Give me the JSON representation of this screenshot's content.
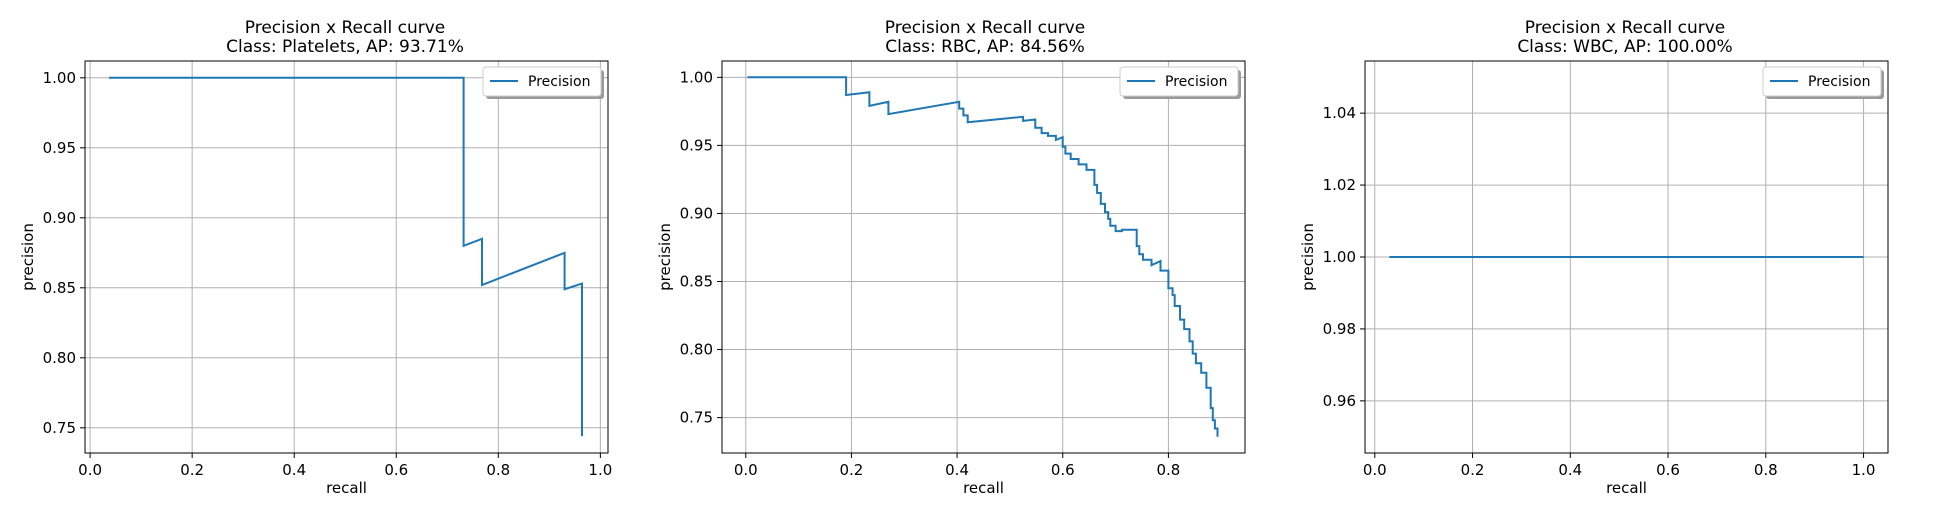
{
  "chart_data": [
    {
      "type": "line",
      "title": "Precision x Recall curve",
      "subtitle": "Class: Platelets, AP: 93.71%",
      "xlabel": "recall",
      "ylabel": "precision",
      "xlim": [
        -0.01,
        1.015
      ],
      "ylim": [
        0.732,
        1.012
      ],
      "xticks": [
        0.0,
        0.2,
        0.4,
        0.6,
        0.8,
        1.0
      ],
      "xtick_labels": [
        "0.0",
        "0.2",
        "0.4",
        "0.6",
        "0.8",
        "1.0"
      ],
      "yticks": [
        0.75,
        0.8,
        0.85,
        0.9,
        0.95,
        1.0
      ],
      "ytick_labels": [
        "0.75",
        "0.80",
        "0.85",
        "0.90",
        "0.95",
        "1.00"
      ],
      "grid": true,
      "legend": "upper right",
      "series": [
        {
          "name": "Precision",
          "color": "#1f77b4",
          "x": [
            0.037,
            0.732,
            0.732,
            0.768,
            0.768,
            0.93,
            0.93,
            0.964,
            0.964
          ],
          "y": [
            1.0,
            1.0,
            0.88,
            0.885,
            0.852,
            0.875,
            0.849,
            0.853,
            0.744
          ]
        }
      ]
    },
    {
      "type": "line",
      "title": "Precision x Recall curve",
      "subtitle": "Class: RBC, AP: 84.56%",
      "xlabel": "recall",
      "ylabel": "precision",
      "xlim": [
        -0.045,
        0.945
      ],
      "ylim": [
        0.724,
        1.012
      ],
      "xticks": [
        0.0,
        0.2,
        0.4,
        0.6,
        0.8
      ],
      "xtick_labels": [
        "0.0",
        "0.2",
        "0.4",
        "0.6",
        "0.8"
      ],
      "yticks": [
        0.75,
        0.8,
        0.85,
        0.9,
        0.95,
        1.0
      ],
      "ytick_labels": [
        "0.75",
        "0.80",
        "0.85",
        "0.90",
        "0.95",
        "1.00"
      ],
      "grid": true,
      "legend": "upper right",
      "series": [
        {
          "name": "Precision",
          "color": "#1f77b4",
          "x": [
            0.003,
            0.19,
            0.19,
            0.234,
            0.234,
            0.27,
            0.27,
            0.404,
            0.404,
            0.412,
            0.412,
            0.42,
            0.42,
            0.525,
            0.525,
            0.548,
            0.548,
            0.56,
            0.56,
            0.572,
            0.572,
            0.587,
            0.587,
            0.6,
            0.6,
            0.605,
            0.605,
            0.615,
            0.615,
            0.63,
            0.63,
            0.645,
            0.645,
            0.66,
            0.66,
            0.665,
            0.665,
            0.672,
            0.672,
            0.68,
            0.68,
            0.686,
            0.686,
            0.69,
            0.69,
            0.7,
            0.7,
            0.712,
            0.712,
            0.74,
            0.74,
            0.745,
            0.745,
            0.752,
            0.752,
            0.768,
            0.768,
            0.785,
            0.785,
            0.8,
            0.8,
            0.808,
            0.808,
            0.812,
            0.812,
            0.822,
            0.822,
            0.83,
            0.83,
            0.84,
            0.84,
            0.846,
            0.846,
            0.852,
            0.852,
            0.862,
            0.862,
            0.872,
            0.872,
            0.88,
            0.88,
            0.884,
            0.884,
            0.888,
            0.888,
            0.893,
            0.893
          ],
          "y": [
            1.0,
            1.0,
            0.987,
            0.989,
            0.979,
            0.982,
            0.973,
            0.982,
            0.977,
            0.977,
            0.972,
            0.972,
            0.967,
            0.971,
            0.968,
            0.969,
            0.963,
            0.963,
            0.959,
            0.959,
            0.957,
            0.957,
            0.954,
            0.956,
            0.949,
            0.949,
            0.944,
            0.944,
            0.94,
            0.94,
            0.936,
            0.936,
            0.932,
            0.932,
            0.921,
            0.921,
            0.915,
            0.915,
            0.907,
            0.907,
            0.901,
            0.901,
            0.896,
            0.896,
            0.891,
            0.891,
            0.887,
            0.887,
            0.888,
            0.888,
            0.876,
            0.876,
            0.87,
            0.87,
            0.866,
            0.866,
            0.862,
            0.865,
            0.858,
            0.858,
            0.845,
            0.845,
            0.84,
            0.84,
            0.832,
            0.832,
            0.822,
            0.822,
            0.815,
            0.815,
            0.806,
            0.806,
            0.797,
            0.797,
            0.79,
            0.79,
            0.783,
            0.783,
            0.772,
            0.772,
            0.757,
            0.757,
            0.748,
            0.748,
            0.742,
            0.742,
            0.736
          ]
        }
      ]
    },
    {
      "type": "line",
      "title": "Precision x Recall curve",
      "subtitle": "Class: WBC, AP: 100.00%",
      "xlabel": "recall",
      "ylabel": "precision",
      "xlim": [
        -0.02,
        1.05
      ],
      "ylim": [
        0.9455,
        1.0545
      ],
      "xticks": [
        0.0,
        0.2,
        0.4,
        0.6,
        0.8,
        1.0
      ],
      "xtick_labels": [
        "0.0",
        "0.2",
        "0.4",
        "0.6",
        "0.8",
        "1.0"
      ],
      "yticks": [
        0.96,
        0.98,
        1.0,
        1.02,
        1.04
      ],
      "ytick_labels": [
        "0.96",
        "0.98",
        "1.00",
        "1.02",
        "1.04"
      ],
      "grid": true,
      "legend": "upper right",
      "series": [
        {
          "name": "Precision",
          "color": "#1f77b4",
          "x": [
            0.03,
            1.0
          ],
          "y": [
            1.0,
            1.0
          ]
        }
      ]
    }
  ]
}
